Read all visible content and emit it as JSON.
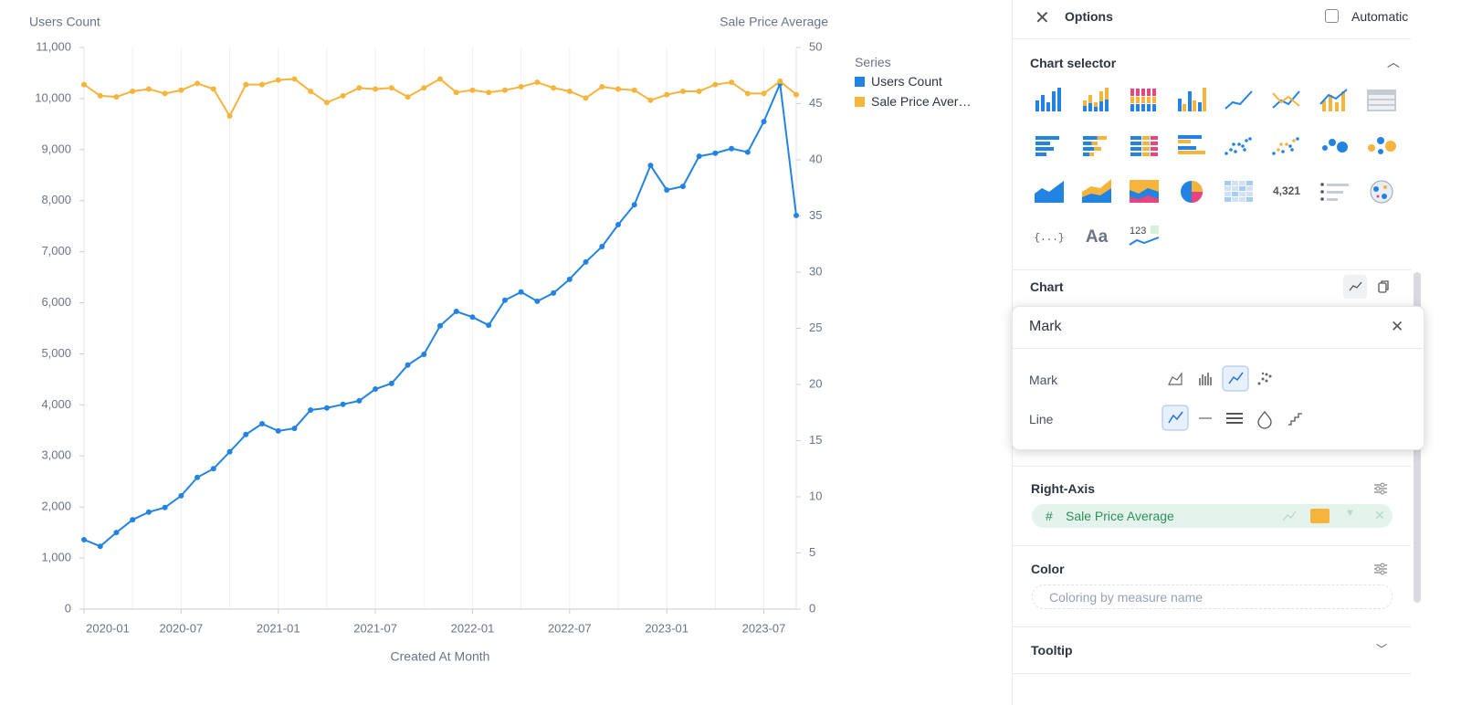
{
  "chart_data": {
    "type": "line",
    "y_label": "Users Count",
    "y2_label": "Sale Price Average",
    "x_label": "Created At Month",
    "legend_title": "Series",
    "legend_position": "right",
    "grid": "x",
    "x": [
      "2020-01",
      "2020-02",
      "2020-03",
      "2020-04",
      "2020-05",
      "2020-06",
      "2020-07",
      "2020-08",
      "2020-09",
      "2020-10",
      "2020-11",
      "2020-12",
      "2021-01",
      "2021-02",
      "2021-03",
      "2021-04",
      "2021-05",
      "2021-06",
      "2021-07",
      "2021-08",
      "2021-09",
      "2021-10",
      "2021-11",
      "2021-12",
      "2022-01",
      "2022-02",
      "2022-03",
      "2022-04",
      "2022-05",
      "2022-06",
      "2022-07",
      "2022-08",
      "2022-09",
      "2022-10",
      "2022-11",
      "2022-12",
      "2023-01",
      "2023-02",
      "2023-03",
      "2023-04",
      "2023-05",
      "2023-06",
      "2023-07",
      "2023-08",
      "2023-09"
    ],
    "xticks": [
      "2020-01",
      "2020-07",
      "2021-01",
      "2021-07",
      "2022-01",
      "2022-07",
      "2023-01",
      "2023-07"
    ],
    "ylim": [
      0,
      11000
    ],
    "yticks": [
      0,
      {
        "value": 1000,
        "label": "1,000"
      },
      {
        "value": 2000,
        "label": "2,000"
      },
      {
        "value": 3000,
        "label": "3,000"
      },
      {
        "value": 4000,
        "label": "4,000"
      },
      {
        "value": 5000,
        "label": "5,000"
      },
      {
        "value": 6000,
        "label": "6,000"
      },
      {
        "value": 7000,
        "label": "7,000"
      },
      {
        "value": 8000,
        "label": "8,000"
      },
      {
        "value": 9000,
        "label": "9,000"
      },
      {
        "value": 10000,
        "label": "10,000"
      },
      {
        "value": 11000,
        "label": "11,000"
      }
    ],
    "y2lim": [
      0,
      50
    ],
    "y2ticks": [
      0,
      5,
      10,
      15,
      20,
      25,
      30,
      35,
      40,
      45,
      50
    ],
    "series": [
      {
        "name": "Users Count",
        "color": "#2383e2",
        "values": [
          1360,
          1230,
          1500,
          1750,
          1900,
          1990,
          2220,
          2580,
          2750,
          3080,
          3420,
          3630,
          3490,
          3540,
          3900,
          3940,
          4010,
          4080,
          4310,
          4420,
          4780,
          4990,
          5550,
          5830,
          5720,
          5560,
          6050,
          6210,
          6030,
          6190,
          6460,
          6800,
          7100,
          7530,
          7920,
          8690,
          8210,
          8280,
          8870,
          8930,
          9020,
          8950,
          9550,
          10290,
          7710
        ]
      },
      {
        "name": "Sale Price Average",
        "color": "#f5b43c",
        "axis": "y2",
        "values": [
          46.7,
          45.7,
          45.6,
          46.1,
          46.3,
          45.9,
          46.2,
          46.8,
          46.3,
          43.9,
          46.7,
          46.7,
          47.1,
          47.2,
          46.1,
          45.1,
          45.7,
          46.4,
          46.3,
          46.4,
          45.6,
          46.4,
          47.2,
          46.0,
          46.2,
          46.0,
          46.2,
          46.5,
          46.9,
          46.4,
          46.1,
          45.5,
          46.5,
          46.3,
          46.2,
          45.3,
          45.8,
          46.1,
          46.1,
          46.7,
          46.9,
          45.9,
          45.9,
          47.0,
          45.8
        ]
      }
    ]
  },
  "panel": {
    "title": "Options",
    "automatic": "Automatic",
    "chart_selector": {
      "title": "Chart selector",
      "icon_texts": [
        "4,321",
        "{...}",
        "Aa",
        "123"
      ]
    },
    "chart_section": "Chart",
    "mark_popup": {
      "title": "Mark",
      "rows": [
        "Mark",
        "Line"
      ]
    },
    "right_axis": {
      "title": "Right-Axis",
      "field": "Sale Price Average"
    },
    "color": {
      "title": "Color",
      "placeholder": "Coloring by measure name"
    },
    "tooltip": "Tooltip"
  }
}
